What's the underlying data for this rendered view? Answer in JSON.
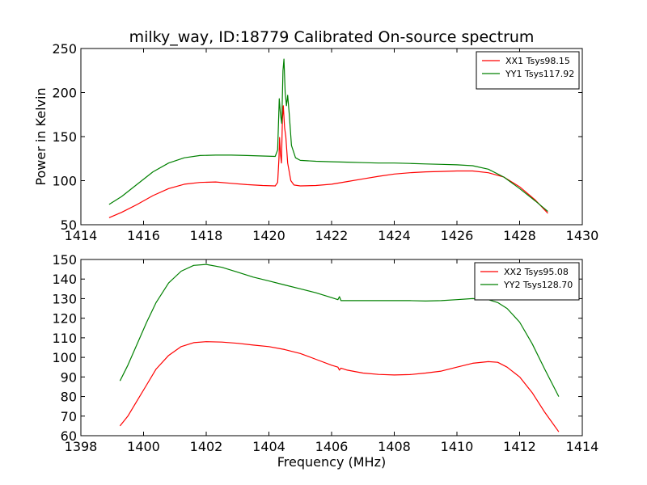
{
  "title": "milky_way, ID:18779 Calibrated On-source spectrum",
  "ylabel": "Power in Kelvin",
  "xlabel": "Frequency (MHz)",
  "chart_data": [
    {
      "type": "line",
      "xlim": [
        1414,
        1430
      ],
      "ylim": [
        50,
        250
      ],
      "xticks": [
        1414,
        1416,
        1418,
        1420,
        1422,
        1424,
        1426,
        1428,
        1430
      ],
      "yticks": [
        50,
        100,
        150,
        200,
        250
      ],
      "legend_position": "top-right",
      "series": [
        {
          "name": "XX1 Tsys98.15",
          "color": "#ff0000",
          "points": [
            [
              1414.9,
              58
            ],
            [
              1415.3,
              64
            ],
            [
              1415.8,
              73
            ],
            [
              1416.3,
              83
            ],
            [
              1416.8,
              91
            ],
            [
              1417.3,
              96
            ],
            [
              1417.8,
              98
            ],
            [
              1418.3,
              98.5
            ],
            [
              1418.8,
              97
            ],
            [
              1419.3,
              95.5
            ],
            [
              1419.8,
              94.5
            ],
            [
              1420.2,
              94
            ],
            [
              1420.28,
              98
            ],
            [
              1420.32,
              125
            ],
            [
              1420.34,
              149
            ],
            [
              1420.37,
              130
            ],
            [
              1420.4,
              120
            ],
            [
              1420.43,
              170
            ],
            [
              1420.46,
              185
            ],
            [
              1420.5,
              160
            ],
            [
              1420.54,
              150
            ],
            [
              1420.6,
              120
            ],
            [
              1420.7,
              100
            ],
            [
              1420.8,
              95
            ],
            [
              1421,
              94
            ],
            [
              1421.5,
              94.5
            ],
            [
              1422,
              96
            ],
            [
              1422.5,
              99
            ],
            [
              1423,
              102
            ],
            [
              1423.5,
              105
            ],
            [
              1424,
              107.5
            ],
            [
              1424.5,
              109
            ],
            [
              1425,
              110
            ],
            [
              1425.5,
              110.5
            ],
            [
              1426,
              111
            ],
            [
              1426.5,
              111
            ],
            [
              1427,
              109
            ],
            [
              1427.5,
              104
            ],
            [
              1428,
              93
            ],
            [
              1428.5,
              78
            ],
            [
              1428.9,
              63
            ]
          ]
        },
        {
          "name": "YY1 Tsys117.92",
          "color": "#008000",
          "points": [
            [
              1414.9,
              73
            ],
            [
              1415.3,
              82
            ],
            [
              1415.8,
              96
            ],
            [
              1416.3,
              110
            ],
            [
              1416.8,
              120
            ],
            [
              1417.3,
              126
            ],
            [
              1417.8,
              128.5
            ],
            [
              1418.3,
              129
            ],
            [
              1418.8,
              129
            ],
            [
              1419.3,
              128.5
            ],
            [
              1419.8,
              128
            ],
            [
              1420.2,
              127.5
            ],
            [
              1420.28,
              135
            ],
            [
              1420.33,
              193
            ],
            [
              1420.37,
              175
            ],
            [
              1420.41,
              165
            ],
            [
              1420.45,
              225
            ],
            [
              1420.48,
              238
            ],
            [
              1420.52,
              200
            ],
            [
              1420.56,
              185
            ],
            [
              1420.6,
              197
            ],
            [
              1420.65,
              175
            ],
            [
              1420.72,
              140
            ],
            [
              1420.85,
              126
            ],
            [
              1421,
              123
            ],
            [
              1421.5,
              122
            ],
            [
              1422,
              121.5
            ],
            [
              1422.5,
              121
            ],
            [
              1423,
              120.5
            ],
            [
              1423.5,
              120
            ],
            [
              1424,
              120
            ],
            [
              1424.5,
              119.5
            ],
            [
              1425,
              119
            ],
            [
              1425.5,
              118.5
            ],
            [
              1426,
              118
            ],
            [
              1426.5,
              117
            ],
            [
              1427,
              113
            ],
            [
              1427.5,
              104
            ],
            [
              1428,
              91
            ],
            [
              1428.5,
              77
            ],
            [
              1428.9,
              65
            ]
          ]
        }
      ]
    },
    {
      "type": "line",
      "xlim": [
        1398,
        1414
      ],
      "ylim": [
        60,
        150
      ],
      "xticks": [
        1398,
        1400,
        1402,
        1404,
        1406,
        1408,
        1410,
        1412,
        1414
      ],
      "yticks": [
        60,
        70,
        80,
        90,
        100,
        110,
        120,
        130,
        140,
        150
      ],
      "legend_position": "top-right",
      "series": [
        {
          "name": "XX2 Tsys95.08",
          "color": "#ff0000",
          "points": [
            [
              1399.25,
              65
            ],
            [
              1399.5,
              70
            ],
            [
              1399.8,
              78
            ],
            [
              1400.1,
              86
            ],
            [
              1400.4,
              94
            ],
            [
              1400.8,
              101
            ],
            [
              1401.2,
              105.5
            ],
            [
              1401.6,
              107.5
            ],
            [
              1402,
              108
            ],
            [
              1402.5,
              107.8
            ],
            [
              1403,
              107.2
            ],
            [
              1403.5,
              106.3
            ],
            [
              1404,
              105.5
            ],
            [
              1404.5,
              104
            ],
            [
              1405,
              102
            ],
            [
              1405.5,
              99
            ],
            [
              1406,
              96
            ],
            [
              1406.2,
              95
            ],
            [
              1406.25,
              93.5
            ],
            [
              1406.3,
              94.5
            ],
            [
              1406.5,
              93.5
            ],
            [
              1407,
              92
            ],
            [
              1407.5,
              91.3
            ],
            [
              1408,
              91
            ],
            [
              1408.5,
              91.2
            ],
            [
              1409,
              92
            ],
            [
              1409.5,
              93
            ],
            [
              1410,
              95
            ],
            [
              1410.5,
              97
            ],
            [
              1411,
              97.8
            ],
            [
              1411.3,
              97.5
            ],
            [
              1411.6,
              95
            ],
            [
              1412,
              90
            ],
            [
              1412.4,
              82
            ],
            [
              1412.8,
              72
            ],
            [
              1413.25,
              62
            ]
          ]
        },
        {
          "name": "YY2 Tsys128.70",
          "color": "#008000",
          "points": [
            [
              1399.25,
              88
            ],
            [
              1399.5,
              96
            ],
            [
              1399.8,
              107
            ],
            [
              1400.1,
              118
            ],
            [
              1400.4,
              128
            ],
            [
              1400.8,
              138
            ],
            [
              1401.2,
              144
            ],
            [
              1401.6,
              147
            ],
            [
              1402,
              147.5
            ],
            [
              1402.5,
              146
            ],
            [
              1403,
              143.5
            ],
            [
              1403.5,
              141
            ],
            [
              1404,
              139
            ],
            [
              1404.5,
              137
            ],
            [
              1405,
              135
            ],
            [
              1405.5,
              133
            ],
            [
              1406,
              130.5
            ],
            [
              1406.2,
              129.5
            ],
            [
              1406.25,
              131
            ],
            [
              1406.3,
              129
            ],
            [
              1406.5,
              129
            ],
            [
              1407,
              129
            ],
            [
              1407.5,
              129
            ],
            [
              1408,
              129
            ],
            [
              1408.5,
              129
            ],
            [
              1409,
              128.8
            ],
            [
              1409.5,
              129
            ],
            [
              1410,
              129.5
            ],
            [
              1410.5,
              130
            ],
            [
              1411,
              129.5
            ],
            [
              1411.3,
              128
            ],
            [
              1411.6,
              125
            ],
            [
              1412,
              118
            ],
            [
              1412.4,
              107
            ],
            [
              1412.8,
              94
            ],
            [
              1413.25,
              80
            ]
          ]
        }
      ]
    }
  ]
}
